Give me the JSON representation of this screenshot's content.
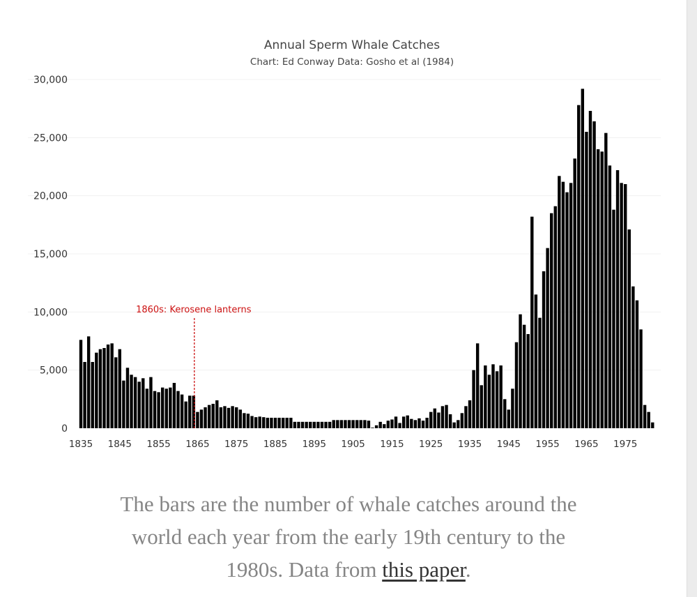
{
  "chart_data": {
    "type": "bar",
    "title": "Annual Sperm Whale Catches",
    "subtitle": "Chart: Ed Conway Data: Gosho et al (1984)",
    "xlabel": "",
    "ylabel": "",
    "x_start": 1835,
    "x_end": 1982,
    "x_ticks": [
      "1835",
      "1845",
      "1855",
      "1865",
      "1875",
      "1885",
      "1895",
      "1905",
      "1915",
      "1925",
      "1935",
      "1945",
      "1955",
      "1965",
      "1975"
    ],
    "y_ticks": [
      "0",
      "5,000",
      "10,000",
      "15,000",
      "20,000",
      "25,000",
      "30,000"
    ],
    "ylim": [
      0,
      30000
    ],
    "grid": true,
    "bar_color": "#000000",
    "values": [
      7600,
      5700,
      7900,
      5700,
      6500,
      6800,
      6900,
      7200,
      7300,
      6100,
      6800,
      4100,
      5200,
      4600,
      4400,
      4000,
      4300,
      3400,
      4400,
      3200,
      3100,
      3500,
      3400,
      3500,
      3900,
      3200,
      2900,
      2300,
      2800,
      2800,
      1400,
      1600,
      1800,
      2000,
      2100,
      2400,
      1800,
      1900,
      1750,
      1900,
      1800,
      1600,
      1300,
      1250,
      1050,
      950,
      1000,
      950,
      900,
      900,
      900,
      900,
      900,
      900,
      900,
      550,
      550,
      550,
      550,
      550,
      550,
      550,
      550,
      550,
      550,
      700,
      700,
      700,
      700,
      700,
      700,
      700,
      700,
      700,
      650,
      50,
      250,
      550,
      350,
      650,
      750,
      1000,
      450,
      1000,
      1100,
      800,
      700,
      850,
      650,
      900,
      1400,
      1700,
      1350,
      1900,
      2000,
      1200,
      500,
      700,
      1300,
      1900,
      2400,
      5000,
      7300,
      3700,
      5400,
      4600,
      5500,
      4900,
      5400,
      2500,
      1600,
      3400,
      7400,
      9800,
      8900,
      8100,
      18200,
      11500,
      9500,
      13500,
      15500,
      18500,
      19100,
      21700,
      21200,
      20300,
      21100,
      23200,
      27800,
      29200,
      25500,
      27300,
      26400,
      24000,
      23800,
      25400,
      22600,
      18800,
      22200,
      21100,
      21000,
      17100,
      12200,
      11000,
      8500,
      2000,
      1400,
      500
    ],
    "annotations": [
      {
        "text": "1860s: Kerosene lanterns",
        "x": 1864,
        "color": "#cc1111",
        "style": "dashed-vertical-line"
      }
    ]
  },
  "caption": {
    "text": "The bars are the number of whale catches around the world each year from the early 19th century to the 1980s. Data from ",
    "link_text": "this paper",
    "end": "."
  }
}
